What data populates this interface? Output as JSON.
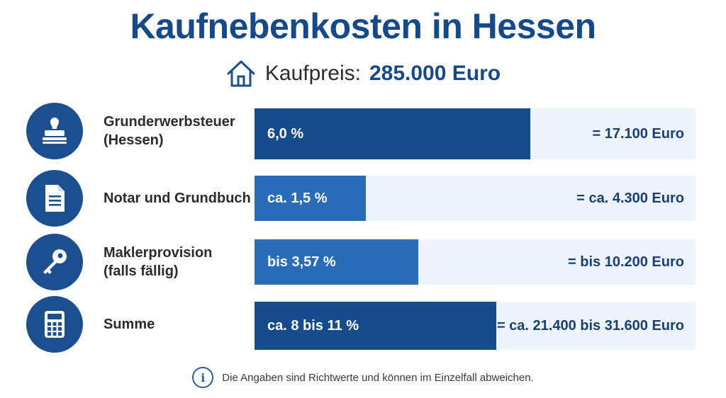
{
  "title": "Kaufnebenkosten in Hessen",
  "price": {
    "label": "Kaufpreis:",
    "value": "285.000 Euro",
    "icon": "house-icon"
  },
  "colors": {
    "title": "#154a8a",
    "bar_dark": "#164b8c",
    "bar_mid": "#2b6cb8",
    "track": "#eef4fb",
    "icon_circle": "#1b4f8f"
  },
  "chart_data": {
    "type": "bar",
    "orientation": "horizontal",
    "categories": [
      "Grunderwerbsteuer\n(Hessen)",
      "Notar und Grundbuch",
      "Maklerprovision\n(falls fällig)",
      "Summe"
    ],
    "series": [
      {
        "values_percent_max": [
          6.0,
          1.5,
          3.57,
          11
        ],
        "bar_labels": [
          "6,0 %",
          "ca. 1,5 %",
          "bis 3,57 %",
          "ca.  8 bis 11 %"
        ],
        "amount_labels": [
          "= 17.100 Euro",
          "= ca. 4.300 Euro",
          "= bis 10.200 Euro",
          "= ca. 21.400 bis 31.600 Euro"
        ]
      }
    ],
    "icons": [
      "stamp-icon",
      "document-icon",
      "key-icon",
      "calculator-icon"
    ]
  },
  "footnote": "Die Angaben sind Richtwerte und können im Einzelfall abweichen."
}
